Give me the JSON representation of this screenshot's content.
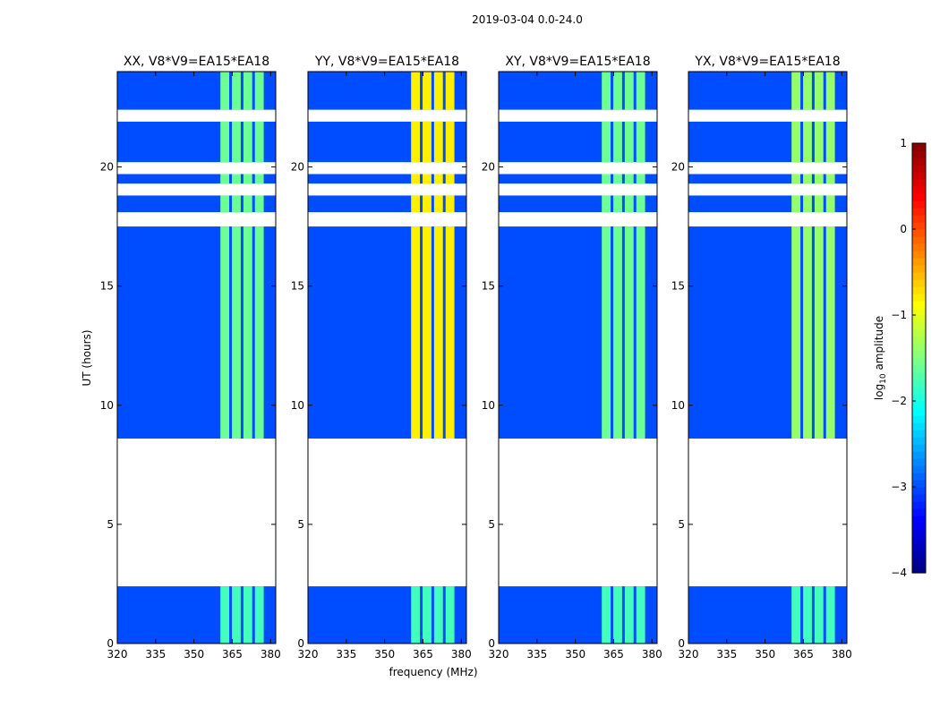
{
  "chart_data": {
    "type": "heatmap",
    "suptitle": "2019-03-04 0.0-24.0",
    "xlabel": "frequency (MHz)",
    "ylabel": "UT (hours)",
    "xlim": [
      320,
      382
    ],
    "ylim": [
      0,
      24
    ],
    "xticks": [
      320,
      335,
      350,
      365,
      380
    ],
    "yticks": [
      0,
      5,
      10,
      15,
      20
    ],
    "panels": [
      {
        "title": "XX, V8*V9=EA15*EA18",
        "pol": "XX"
      },
      {
        "title": "YY, V8*V9=EA15*EA18",
        "pol": "YY"
      },
      {
        "title": "XY, V8*V9=EA15*EA18",
        "pol": "XY"
      },
      {
        "title": "YX, V8*V9=EA15*EA18",
        "pol": "YX"
      }
    ],
    "colorbar": {
      "label_main": "log",
      "label_sub": "10",
      "label_rest": " amplitude",
      "range": [
        -4,
        1
      ],
      "ticks": [
        -4,
        -3,
        -2,
        -1,
        0,
        1
      ],
      "colormap": "jet"
    },
    "data_blocks_hours": [
      [
        0,
        2.4
      ],
      [
        8.6,
        17.5
      ],
      [
        18.1,
        18.8
      ],
      [
        19.3,
        19.7
      ],
      [
        20.2,
        21.9
      ],
      [
        22.4,
        24
      ]
    ],
    "band_mhz": [
      360,
      378
    ],
    "panel_intensity_log10": {
      "XX": -1.6,
      "YY": -0.8,
      "XY": -1.6,
      "YX": -1.4
    }
  }
}
